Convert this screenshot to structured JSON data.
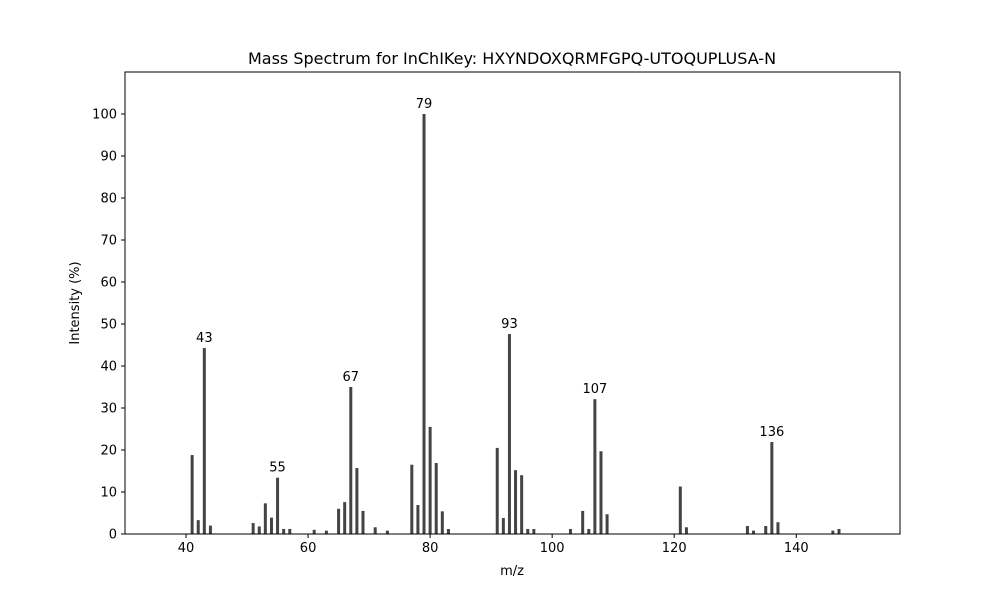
{
  "chart_data": {
    "type": "bar",
    "title": "Mass Spectrum for InChIKey: HXYNDOXQRMFGPQ-UTOQUPLUSA-N",
    "xlabel": "m/z",
    "ylabel": "Intensity (%)",
    "xlim": [
      30,
      157
    ],
    "ylim": [
      0,
      110
    ],
    "xticks": [
      40,
      60,
      80,
      100,
      120,
      140
    ],
    "yticks": [
      0,
      10,
      20,
      30,
      40,
      50,
      60,
      70,
      80,
      90,
      100
    ],
    "bar_color": "#444444",
    "grid": false,
    "x": [
      41,
      42,
      43,
      44,
      51,
      52,
      53,
      54,
      55,
      56,
      57,
      61,
      63,
      65,
      66,
      67,
      68,
      69,
      71,
      73,
      77,
      78,
      79,
      80,
      81,
      82,
      83,
      91,
      92,
      93,
      94,
      95,
      96,
      97,
      103,
      105,
      106,
      107,
      108,
      109,
      121,
      122,
      132,
      133,
      135,
      136,
      137,
      146,
      147
    ],
    "values": [
      18.8,
      3.3,
      44.3,
      2.0,
      2.6,
      1.8,
      7.3,
      3.9,
      13.4,
      1.2,
      1.2,
      1.0,
      0.8,
      6.0,
      7.6,
      35.0,
      15.7,
      5.5,
      1.6,
      0.8,
      16.5,
      6.9,
      100.0,
      25.5,
      16.9,
      5.4,
      1.2,
      20.5,
      3.8,
      47.6,
      15.2,
      14.0,
      1.2,
      1.2,
      1.2,
      5.5,
      1.2,
      32.1,
      19.7,
      4.7,
      11.3,
      1.6,
      1.9,
      0.8,
      1.9,
      21.9,
      2.8,
      0.8,
      1.2
    ],
    "labeled_peaks": [
      {
        "x": 43,
        "label": "43"
      },
      {
        "x": 55,
        "label": "55"
      },
      {
        "x": 67,
        "label": "67"
      },
      {
        "x": 79,
        "label": "79"
      },
      {
        "x": 93,
        "label": "93"
      },
      {
        "x": 107,
        "label": "107"
      },
      {
        "x": 136,
        "label": "136"
      }
    ]
  }
}
